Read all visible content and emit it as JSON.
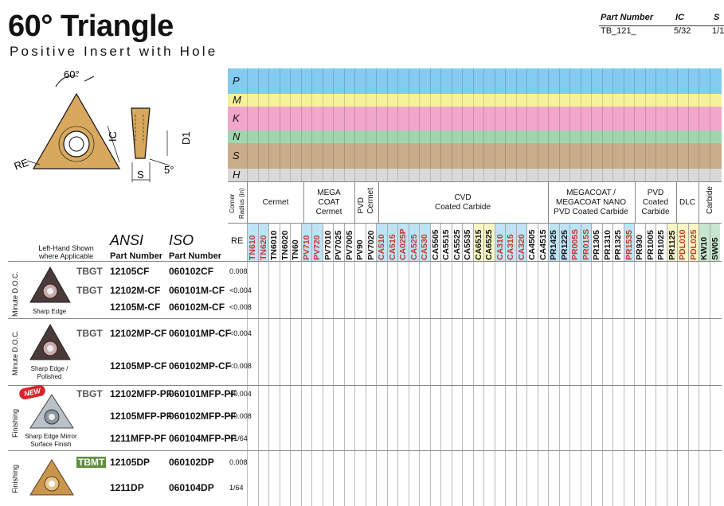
{
  "title": "60° Triangle",
  "subtitle": "Positive Insert with Hole",
  "part_info": {
    "headers": [
      "Part Number",
      "IC",
      "S"
    ],
    "values": [
      "TB_121_",
      "5/32",
      "1/1"
    ]
  },
  "diagram": {
    "angle": "60°",
    "labels": [
      "RE",
      "IC",
      "D1",
      "S",
      "5°"
    ]
  },
  "materials": [
    {
      "code": "P",
      "color": "#84cbf0"
    },
    {
      "code": "M",
      "color": "#f6f29a"
    },
    {
      "code": "K",
      "color": "#f2a6cc"
    },
    {
      "code": "N",
      "color": "#9fd6ad"
    },
    {
      "code": "S",
      "color": "#c9ad8b"
    },
    {
      "code": "H",
      "color": "#d9d9d9"
    }
  ],
  "groups": {
    "corner": "Corner Radius (in)",
    "cermet": "Cermet",
    "megacoat_cermet": [
      "MEGA",
      "COAT",
      "Cermet"
    ],
    "pvd_cermet": [
      "PVD",
      "Cermet"
    ],
    "cvd": [
      "CVD",
      "Coated Carbide"
    ],
    "megacoat_nano": [
      "MEGACOAT /",
      "MEGACOAT NANO",
      "PVD Coated Carbide"
    ],
    "pvd_carbide": [
      "PVD",
      "Coated",
      "Carbide"
    ],
    "dlc": "DLC",
    "carbide": "Carbide"
  },
  "header_labels": {
    "left_hand": [
      "Left-Hand Shown",
      "where Applicable"
    ],
    "ansi": "ANSI",
    "iso": "ISO",
    "part_number": "Part Number",
    "re": "RE"
  },
  "grades": [
    "TN610",
    "TN620",
    "TN6010",
    "TN6020",
    "TN60",
    "PV710",
    "PV720",
    "PV7010",
    "PV7025",
    "PV7005",
    "PV90",
    "PV7020",
    "CA510",
    "CA515",
    "CA025P",
    "CA525",
    "CA530",
    "CA5505",
    "CA5515",
    "CA5525",
    "CA5535",
    "CA6515",
    "CA6525",
    "CA310",
    "CA315",
    "CA320",
    "CA4505",
    "CA4515",
    "PR1425",
    "PR1225",
    "PR005S",
    "PR015S",
    "PR1305",
    "PR1310",
    "PR1325",
    "PR1535",
    "PR930",
    "PR1005",
    "PR1025",
    "PR1125",
    "PDL010",
    "PDL025",
    "KW10",
    "SW05"
  ],
  "sections": [
    {
      "label": "Minute D.O.C.",
      "caption": "Sharp Edge"
    },
    {
      "label": "Minute D.O.C.",
      "caption": "Sharp Edge / Polished"
    },
    {
      "label": "Finishing",
      "caption": "Sharp Edge Mirror Surface Finish",
      "badge": "NEW"
    },
    {
      "label": "Finishing",
      "caption": ""
    }
  ],
  "rows": [
    {
      "prefix": "TBGT",
      "ansi": "12105CF",
      "iso": "060102CF",
      "re": "0.008"
    },
    {
      "prefix": "TBGT",
      "ansi": "12102M-CF",
      "iso": "060101M-CF",
      "re": "<0.004"
    },
    {
      "prefix": "",
      "ansi": "12105M-CF",
      "iso": "060102M-CF",
      "re": "<0.008"
    },
    {
      "prefix": "TBGT",
      "ansi": "12102MP-CF",
      "iso": "060101MP-CF",
      "re": "<0.004"
    },
    {
      "prefix": "",
      "ansi": "12105MP-CF",
      "iso": "060102MP-CF",
      "re": "<0.008"
    },
    {
      "prefix": "TBGT",
      "ansi": "12102MFP-PF",
      "iso": "060101MFP-PF",
      "re": "<0.004"
    },
    {
      "prefix": "",
      "ansi": "12105MFP-PF",
      "iso": "060102MFP-PF",
      "re": "<0.008"
    },
    {
      "prefix": "",
      "ansi": "1211MFP-PF",
      "iso": "060104MFP-PF",
      "re": "<1/64"
    },
    {
      "prefix": "TBMT",
      "ansi": "12105DP",
      "iso": "060102DP",
      "re": "0.008"
    },
    {
      "prefix": "",
      "ansi": "1211DP",
      "iso": "060104DP",
      "re": "1/64"
    }
  ]
}
